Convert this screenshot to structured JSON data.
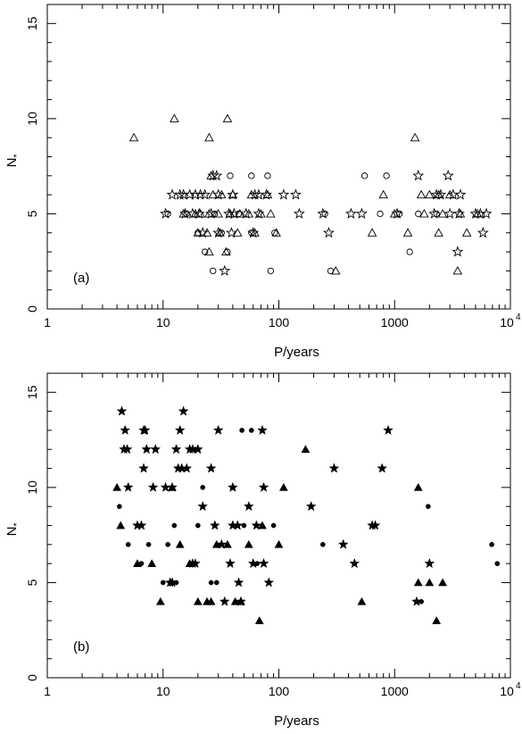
{
  "chart_data": [
    {
      "type": "scatter",
      "panel_label": "(a)",
      "xlabel": "P/years",
      "ylabel_main": "N",
      "ylabel_sub": "*",
      "xscale": "log",
      "xlim": [
        1,
        10000
      ],
      "ylim": [
        0,
        16
      ],
      "xticks": [
        {
          "value": 1,
          "label": "1"
        },
        {
          "value": 10,
          "label": "10"
        },
        {
          "value": 100,
          "label": "100"
        },
        {
          "value": 1000,
          "label": "1000"
        },
        {
          "value": 10000,
          "label": "10",
          "sup": "4"
        }
      ],
      "yticks": [
        0,
        5,
        10,
        15
      ],
      "series": [
        {
          "marker": "open-triangle",
          "points": [
            [
              5.6,
              9
            ],
            [
              12.5,
              10
            ],
            [
              25,
              9
            ],
            [
              36,
              10
            ],
            [
              1500,
              9
            ],
            [
              26,
              7
            ],
            [
              27,
              6
            ],
            [
              32,
              6
            ],
            [
              40,
              6
            ],
            [
              58,
              6
            ],
            [
              80,
              6
            ],
            [
              800,
              6
            ],
            [
              1700,
              6
            ],
            [
              2000,
              6
            ],
            [
              2400,
              6
            ],
            [
              3000,
              6
            ],
            [
              15,
              5
            ],
            [
              19,
              5
            ],
            [
              21,
              5
            ],
            [
              25,
              5
            ],
            [
              30,
              5
            ],
            [
              38,
              5
            ],
            [
              46,
              5
            ],
            [
              55,
              5
            ],
            [
              70,
              5
            ],
            [
              85,
              5
            ],
            [
              1000,
              5
            ],
            [
              1800,
              5
            ],
            [
              2600,
              5
            ],
            [
              3700,
              5
            ],
            [
              5200,
              5
            ],
            [
              20,
              4
            ],
            [
              24,
              4
            ],
            [
              31,
              4
            ],
            [
              44,
              4
            ],
            [
              62,
              4
            ],
            [
              95,
              4
            ],
            [
              640,
              4
            ],
            [
              1300,
              4
            ],
            [
              2400,
              4
            ],
            [
              4200,
              4
            ],
            [
              25,
              3
            ],
            [
              35,
              3
            ],
            [
              310,
              2
            ],
            [
              3500,
              2
            ]
          ]
        },
        {
          "marker": "open-circle",
          "points": [
            [
              38,
              7
            ],
            [
              58,
              7
            ],
            [
              80,
              7
            ],
            [
              550,
              7
            ],
            [
              850,
              7
            ],
            [
              11,
              5
            ],
            [
              16,
              5
            ],
            [
              28,
              5
            ],
            [
              45,
              5
            ],
            [
              250,
              5
            ],
            [
              750,
              5
            ],
            [
              1100,
              5
            ],
            [
              1600,
              5
            ],
            [
              2300,
              5
            ],
            [
              20,
              4
            ],
            [
              32,
              4
            ],
            [
              58,
              4
            ],
            [
              92,
              4
            ],
            [
              23,
              3
            ],
            [
              36,
              3
            ],
            [
              1350,
              3
            ],
            [
              27,
              2
            ],
            [
              85,
              2
            ],
            [
              280,
              2
            ]
          ]
        },
        {
          "marker": "open-star",
          "points": [
            [
              27,
              7
            ],
            [
              29,
              7
            ],
            [
              1600,
              7
            ],
            [
              2900,
              7
            ],
            [
              12,
              6
            ],
            [
              14,
              6
            ],
            [
              15,
              6
            ],
            [
              17,
              6
            ],
            [
              19,
              6
            ],
            [
              21,
              6
            ],
            [
              23,
              6
            ],
            [
              30,
              6
            ],
            [
              40,
              6
            ],
            [
              62,
              6
            ],
            [
              67,
              6
            ],
            [
              78,
              6
            ],
            [
              110,
              6
            ],
            [
              140,
              6
            ],
            [
              2300,
              6
            ],
            [
              2500,
              6
            ],
            [
              3200,
              6
            ],
            [
              3700,
              6
            ],
            [
              10.5,
              5
            ],
            [
              15.5,
              5
            ],
            [
              18,
              5
            ],
            [
              20.5,
              5
            ],
            [
              26,
              5
            ],
            [
              37,
              5
            ],
            [
              41,
              5
            ],
            [
              52,
              5
            ],
            [
              67,
              5
            ],
            [
              150,
              5
            ],
            [
              240,
              5
            ],
            [
              420,
              5
            ],
            [
              520,
              5
            ],
            [
              1050,
              5
            ],
            [
              2200,
              5
            ],
            [
              3000,
              5
            ],
            [
              3600,
              5
            ],
            [
              5000,
              5
            ],
            [
              5500,
              5
            ],
            [
              6200,
              5
            ],
            [
              22,
              4
            ],
            [
              30,
              4
            ],
            [
              39,
              4
            ],
            [
              60,
              4
            ],
            [
              270,
              4
            ],
            [
              5800,
              4
            ],
            [
              3500,
              3
            ],
            [
              34,
              2
            ]
          ]
        }
      ]
    },
    {
      "type": "scatter",
      "panel_label": "(b)",
      "xlabel": "P/years",
      "ylabel_main": "N",
      "ylabel_sub": "*",
      "xscale": "log",
      "xlim": [
        1,
        10000
      ],
      "ylim": [
        0,
        16
      ],
      "xticks": [
        {
          "value": 1,
          "label": "1"
        },
        {
          "value": 10,
          "label": "10"
        },
        {
          "value": 100,
          "label": "100"
        },
        {
          "value": 1000,
          "label": "1000"
        },
        {
          "value": 10000,
          "label": "10",
          "sup": "4"
        }
      ],
      "yticks": [
        0,
        5,
        10,
        15
      ],
      "series": [
        {
          "marker": "filled-triangle",
          "points": [
            [
              4,
              10
            ],
            [
              4.3,
              8
            ],
            [
              6,
              6
            ],
            [
              8,
              6
            ],
            [
              9.5,
              4
            ],
            [
              12,
              10
            ],
            [
              14,
              7
            ],
            [
              17,
              6
            ],
            [
              20,
              4
            ],
            [
              24,
              4
            ],
            [
              26,
              4
            ],
            [
              29,
              7
            ],
            [
              36,
              7
            ],
            [
              42,
              4
            ],
            [
              47,
              4
            ],
            [
              55,
              7
            ],
            [
              68,
              3
            ],
            [
              72,
              8
            ],
            [
              100,
              7
            ],
            [
              110,
              10
            ],
            [
              170,
              12
            ],
            [
              520,
              4
            ],
            [
              1600,
              10
            ],
            [
              1600,
              5
            ],
            [
              2000,
              5
            ],
            [
              2300,
              3
            ],
            [
              2600,
              5
            ]
          ]
        },
        {
          "marker": "filled-circle",
          "points": [
            [
              4.2,
              9
            ],
            [
              5,
              7
            ],
            [
              6.5,
              6
            ],
            [
              7.5,
              7
            ],
            [
              10,
              5
            ],
            [
              11,
              7
            ],
            [
              12.5,
              8
            ],
            [
              13,
              5
            ],
            [
              19,
              12
            ],
            [
              20,
              8
            ],
            [
              22,
              10
            ],
            [
              26,
              5
            ],
            [
              29,
              5
            ],
            [
              40,
              10
            ],
            [
              48,
              13
            ],
            [
              50,
              8
            ],
            [
              58,
              13
            ],
            [
              65,
              6
            ],
            [
              90,
              8
            ],
            [
              240,
              7
            ],
            [
              1950,
              9
            ],
            [
              1700,
              4
            ],
            [
              6900,
              7
            ],
            [
              7700,
              6
            ]
          ]
        },
        {
          "marker": "filled-star",
          "points": [
            [
              4.4,
              14
            ],
            [
              4.7,
              13
            ],
            [
              4.6,
              12
            ],
            [
              4.9,
              12
            ],
            [
              5,
              10
            ],
            [
              6,
              8
            ],
            [
              6.5,
              8
            ],
            [
              6.8,
              13
            ],
            [
              7,
              13
            ],
            [
              6.8,
              11
            ],
            [
              7.2,
              12
            ],
            [
              8.6,
              12
            ],
            [
              8.2,
              10
            ],
            [
              10.5,
              10
            ],
            [
              11.5,
              5
            ],
            [
              12,
              5
            ],
            [
              12,
              10
            ],
            [
              13,
              12
            ],
            [
              13.5,
              11
            ],
            [
              14,
              13
            ],
            [
              15,
              14
            ],
            [
              14.5,
              11
            ],
            [
              16,
              11
            ],
            [
              17,
              12
            ],
            [
              18,
              12
            ],
            [
              18,
              6
            ],
            [
              19,
              6
            ],
            [
              20,
              12
            ],
            [
              22,
              9
            ],
            [
              26,
              11
            ],
            [
              28,
              8
            ],
            [
              30,
              13
            ],
            [
              32,
              7
            ],
            [
              34,
              4
            ],
            [
              38,
              6
            ],
            [
              40,
              10
            ],
            [
              40,
              8
            ],
            [
              44,
              8
            ],
            [
              45,
              5
            ],
            [
              47,
              4
            ],
            [
              55,
              9
            ],
            [
              60,
              6
            ],
            [
              64,
              8
            ],
            [
              72,
              13
            ],
            [
              74,
              10
            ],
            [
              74,
              6
            ],
            [
              82,
              5
            ],
            [
              190,
              9
            ],
            [
              300,
              11
            ],
            [
              360,
              7
            ],
            [
              450,
              6
            ],
            [
              640,
              8
            ],
            [
              680,
              8
            ],
            [
              780,
              11
            ],
            [
              880,
              13
            ],
            [
              1550,
              4
            ],
            [
              2000,
              6
            ]
          ]
        }
      ]
    }
  ]
}
